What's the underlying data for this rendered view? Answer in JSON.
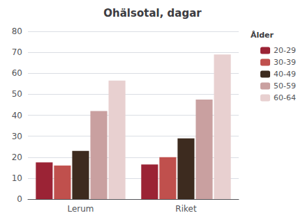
{
  "chart_data": {
    "type": "bar",
    "title": "Ohälsotal, dagar",
    "categories": [
      "Lerum",
      "Riket"
    ],
    "series": [
      {
        "name": "20-29",
        "color": "#9B2335",
        "values": [
          17.5,
          16.5
        ]
      },
      {
        "name": "30-39",
        "color": "#C0504D",
        "values": [
          16.0,
          20.0
        ]
      },
      {
        "name": "40-49",
        "color": "#3D2B1F",
        "values": [
          23.0,
          29.0
        ]
      },
      {
        "name": "50-59",
        "color": "#C9A0A0",
        "values": [
          42.0,
          47.5
        ]
      },
      {
        "name": "60-64",
        "color": "#E8D0D0",
        "values": [
          56.5,
          69.0
        ]
      }
    ],
    "legend_title": "Ålder",
    "ylim": [
      0,
      80
    ],
    "yticks": [
      0,
      10,
      20,
      30,
      40,
      50,
      60,
      70,
      80
    ],
    "grid": true,
    "legend": "upper right"
  }
}
